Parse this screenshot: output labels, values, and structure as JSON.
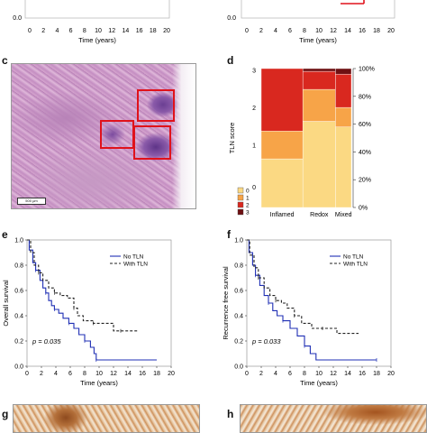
{
  "panels": {
    "c": "c",
    "d": "d",
    "e": "e",
    "f": "f",
    "g": "g",
    "h": "h"
  },
  "top_partial": {
    "xlabel": "Time (years)",
    "ticks": [
      "0",
      "2",
      "4",
      "6",
      "8",
      "10",
      "12",
      "14",
      "16",
      "18",
      "20"
    ],
    "left_y_tick": "0.0",
    "right_y_tick": "0.0"
  },
  "histology": {
    "scale_label": "500 μm",
    "roi_count": 3,
    "roi_color": "#e0121b"
  },
  "chart_data": [
    {
      "panel": "d",
      "type": "bar",
      "stacked": true,
      "ylabel": "TLN score",
      "categories": [
        "Inflamed",
        "Redox",
        "Mixed"
      ],
      "widths": [
        0.42,
        0.33,
        0.16
      ],
      "series": [
        {
          "name": "0",
          "color": "#fbd983",
          "values": [
            0.35,
            0.62,
            0.58
          ]
        },
        {
          "name": "1",
          "color": "#f7a448",
          "values": [
            0.2,
            0.23,
            0.14
          ]
        },
        {
          "name": "2",
          "color": "#d9281f",
          "values": [
            0.45,
            0.13,
            0.24
          ]
        },
        {
          "name": "3",
          "color": "#6e1012",
          "values": [
            0.0,
            0.02,
            0.04
          ]
        }
      ],
      "left_ticks": [
        "0",
        "1",
        "2",
        "3"
      ],
      "right_ticks": [
        "0%",
        "20%",
        "40%",
        "60%",
        "80%",
        "100%"
      ]
    },
    {
      "panel": "e",
      "type": "line",
      "ylabel": "Overall survival",
      "xlabel": "Time (years)",
      "xlim": [
        0,
        20
      ],
      "ylim": [
        0,
        1
      ],
      "xticks": [
        "0",
        "2",
        "4",
        "6",
        "8",
        "10",
        "12",
        "14",
        "16",
        "18",
        "20"
      ],
      "yticks": [
        "0.0",
        "0.2",
        "0.4",
        "0.6",
        "0.8",
        "1.0"
      ],
      "pvalue": "p = 0.035",
      "series": [
        {
          "name": "No TLN",
          "color": "#1f2fb4",
          "dash": false,
          "points": [
            [
              0,
              1.0
            ],
            [
              0.3,
              0.92
            ],
            [
              0.8,
              0.82
            ],
            [
              1.2,
              0.76
            ],
            [
              1.8,
              0.68
            ],
            [
              2.2,
              0.62
            ],
            [
              2.6,
              0.58
            ],
            [
              3.0,
              0.52
            ],
            [
              3.4,
              0.48
            ],
            [
              3.8,
              0.45
            ],
            [
              4.4,
              0.42
            ],
            [
              5.0,
              0.38
            ],
            [
              5.8,
              0.34
            ],
            [
              6.5,
              0.3
            ],
            [
              7.2,
              0.25
            ],
            [
              8.0,
              0.2
            ],
            [
              8.8,
              0.15
            ],
            [
              9.3,
              0.1
            ],
            [
              9.6,
              0.05
            ],
            [
              18,
              0.05
            ]
          ]
        },
        {
          "name": "With TLN",
          "color": "#222222",
          "dash": true,
          "points": [
            [
              0,
              1.0
            ],
            [
              0.5,
              0.9
            ],
            [
              1.0,
              0.8
            ],
            [
              1.6,
              0.74
            ],
            [
              2.2,
              0.68
            ],
            [
              3.0,
              0.62
            ],
            [
              3.8,
              0.58
            ],
            [
              4.6,
              0.56
            ],
            [
              5.6,
              0.54
            ],
            [
              6.5,
              0.46
            ],
            [
              7.0,
              0.4
            ],
            [
              7.8,
              0.36
            ],
            [
              9.2,
              0.34
            ],
            [
              11.0,
              0.34
            ],
            [
              12.0,
              0.28
            ],
            [
              13.0,
              0.28
            ],
            [
              15.5,
              0.28
            ]
          ]
        }
      ]
    },
    {
      "panel": "f",
      "type": "line",
      "ylabel": "Recurrence free survival",
      "xlabel": "Time (years)",
      "xlim": [
        0,
        20
      ],
      "ylim": [
        0,
        1
      ],
      "xticks": [
        "0",
        "2",
        "4",
        "6",
        "8",
        "10",
        "12",
        "14",
        "16",
        "18",
        "20"
      ],
      "yticks": [
        "0.0",
        "0.2",
        "0.4",
        "0.6",
        "0.8",
        "1.0"
      ],
      "pvalue": "p = 0.033",
      "series": [
        {
          "name": "No TLN",
          "color": "#1f2fb4",
          "dash": false,
          "points": [
            [
              0,
              1.0
            ],
            [
              0.3,
              0.9
            ],
            [
              0.8,
              0.8
            ],
            [
              1.2,
              0.72
            ],
            [
              1.8,
              0.64
            ],
            [
              2.4,
              0.56
            ],
            [
              3.0,
              0.5
            ],
            [
              3.6,
              0.44
            ],
            [
              4.2,
              0.4
            ],
            [
              5.0,
              0.36
            ],
            [
              6.0,
              0.3
            ],
            [
              7.0,
              0.24
            ],
            [
              8.0,
              0.16
            ],
            [
              8.8,
              0.1
            ],
            [
              9.6,
              0.05
            ],
            [
              18,
              0.05
            ]
          ]
        },
        {
          "name": "With TLN",
          "color": "#222222",
          "dash": true,
          "points": [
            [
              0,
              1.0
            ],
            [
              0.4,
              0.88
            ],
            [
              1.0,
              0.78
            ],
            [
              1.6,
              0.7
            ],
            [
              2.4,
              0.62
            ],
            [
              3.2,
              0.56
            ],
            [
              4.0,
              0.52
            ],
            [
              4.8,
              0.5
            ],
            [
              5.6,
              0.46
            ],
            [
              6.6,
              0.4
            ],
            [
              7.6,
              0.34
            ],
            [
              9.0,
              0.3
            ],
            [
              10.5,
              0.3
            ],
            [
              12.5,
              0.26
            ],
            [
              15.5,
              0.26
            ]
          ]
        }
      ]
    }
  ]
}
